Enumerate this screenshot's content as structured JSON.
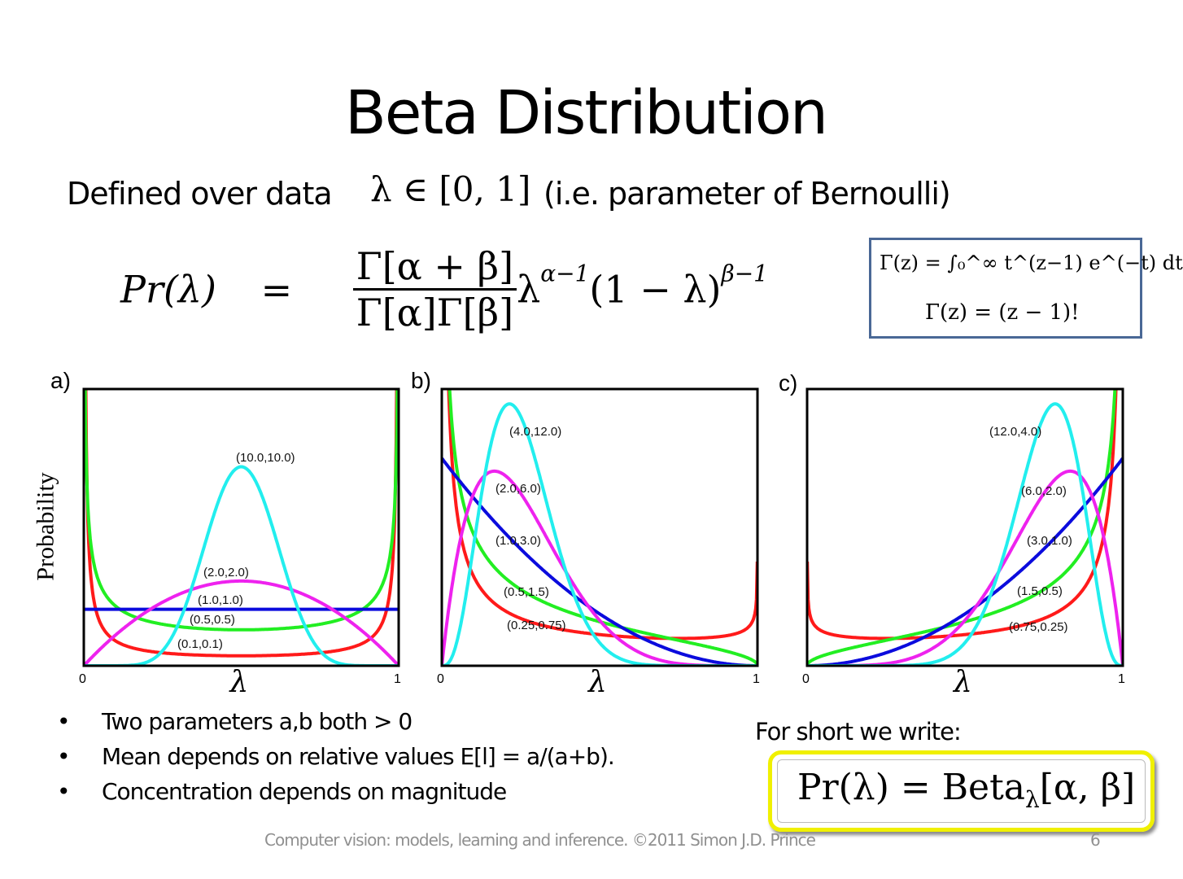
{
  "title": "Beta Distribution",
  "intro": {
    "prefix": "Defined over data",
    "math": "λ ∈ [0, 1]",
    "suffix": "(i.e. parameter of Bernoulli)"
  },
  "formula": {
    "lhs": "Pr(λ)",
    "eq": "=",
    "numerator": "Γ[α + β]",
    "denominator": "Γ[α]Γ[β]",
    "tail": "λ",
    "tail_exp": "α−1",
    "tail2": "(1 − λ)",
    "tail2_exp": "β−1"
  },
  "gamma_box": {
    "line1": "Γ(z) = ∫₀^∞ t^(z−1) e^(−t) dt",
    "line2": "Γ(z) = (z − 1)!"
  },
  "bullets": [
    "Two parameters a,b both > 0",
    "Mean depends on relative values E[l] = a/(a+b).",
    "Concentration depends on magnitude"
  ],
  "short": {
    "label": "For short we write:",
    "lhs": "Pr(λ) = Beta",
    "sub": "λ",
    "args": "[α, β]"
  },
  "footer": "Computer vision: models, learning and inference.  ©2011 Simon J.D. Prince",
  "page_number": "6",
  "colors": {
    "red": "#ff1a1a",
    "green": "#22ee22",
    "blue": "#0b0bdd",
    "magenta": "#ee22ee",
    "cyan": "#22eeee"
  },
  "chart_data": [
    {
      "type": "line",
      "panel": "a)",
      "ylabel": "Probability",
      "xlabel": "λ",
      "xlim": [
        0,
        1
      ],
      "x_ticks": [
        "0",
        "1"
      ],
      "ylim": [
        0,
        4.9
      ],
      "series": [
        {
          "name": "(0.1,0.1)",
          "alpha": 0.1,
          "beta": 0.1,
          "color": "red"
        },
        {
          "name": "(0.5,0.5)",
          "alpha": 0.5,
          "beta": 0.5,
          "color": "green"
        },
        {
          "name": "(1.0,1.0)",
          "alpha": 1,
          "beta": 1,
          "color": "blue"
        },
        {
          "name": "(2.0,2.0)",
          "alpha": 2,
          "beta": 2,
          "color": "magenta"
        },
        {
          "name": "(10.0,10.0)",
          "alpha": 10,
          "beta": 10,
          "color": "cyan"
        }
      ]
    },
    {
      "type": "line",
      "panel": "b)",
      "xlabel": "λ",
      "xlim": [
        0,
        1
      ],
      "x_ticks": [
        "0",
        "1"
      ],
      "ylim": [
        0,
        4
      ],
      "series": [
        {
          "name": "(0.25,0.75)",
          "alpha": 0.25,
          "beta": 0.75,
          "color": "red"
        },
        {
          "name": "(0.5,1.5)",
          "alpha": 0.5,
          "beta": 1.5,
          "color": "green"
        },
        {
          "name": "(1.0,3.0)",
          "alpha": 1,
          "beta": 3,
          "color": "blue"
        },
        {
          "name": "(2.0,6.0)",
          "alpha": 2,
          "beta": 6,
          "color": "magenta"
        },
        {
          "name": "(4.0,12.0)",
          "alpha": 4,
          "beta": 12,
          "color": "cyan"
        }
      ]
    },
    {
      "type": "line",
      "panel": "c)",
      "xlabel": "λ",
      "xlim": [
        0,
        1
      ],
      "x_ticks": [
        "0",
        "1"
      ],
      "ylim": [
        0,
        4
      ],
      "series": [
        {
          "name": "(0.75,0.25)",
          "alpha": 0.75,
          "beta": 0.25,
          "color": "red"
        },
        {
          "name": "(1.5,0.5)",
          "alpha": 1.5,
          "beta": 0.5,
          "color": "green"
        },
        {
          "name": "(3.0,1.0)",
          "alpha": 3,
          "beta": 1,
          "color": "blue"
        },
        {
          "name": "(6.0,2.0)",
          "alpha": 6,
          "beta": 2,
          "color": "magenta"
        },
        {
          "name": "(12.0,4.0)",
          "alpha": 12,
          "beta": 4,
          "color": "cyan"
        }
      ]
    }
  ]
}
